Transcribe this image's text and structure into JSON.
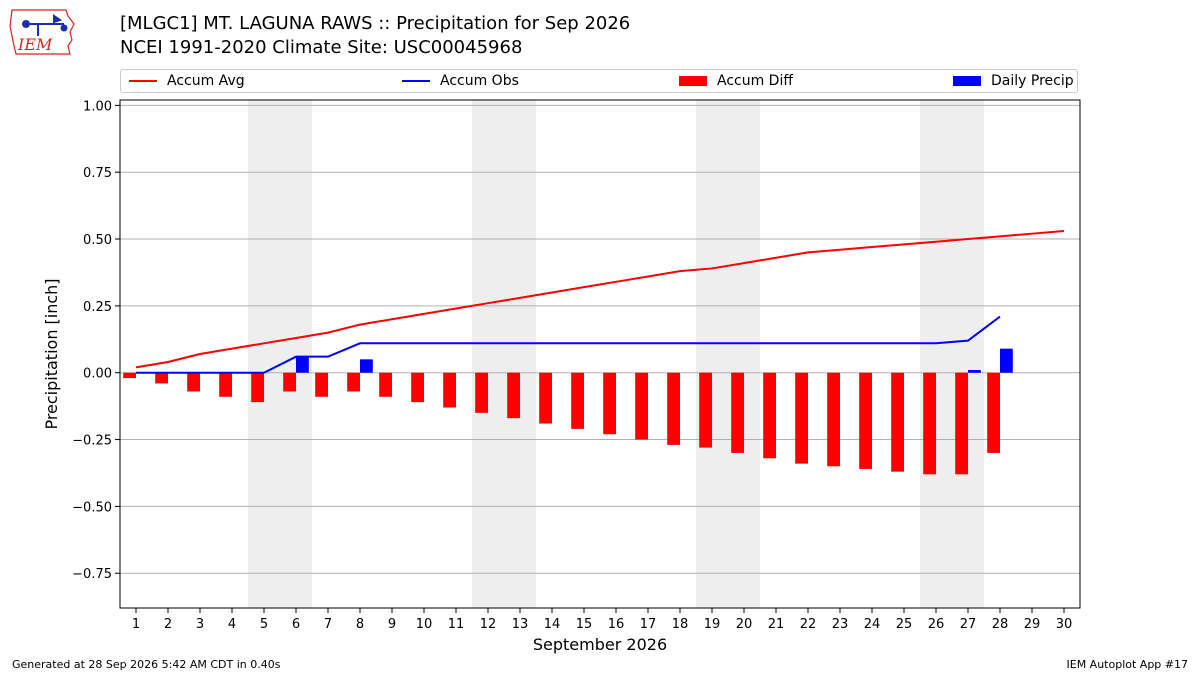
{
  "header": {
    "title_line1": "[MLGC1] MT. LAGUNA RAWS :: Precipitation for Sep 2026",
    "title_line2": "NCEI 1991-2020 Climate Site: USC00045968",
    "logo_text": "IEM",
    "logo_icon": "iem-iowa-logo-icon"
  },
  "legend": {
    "accum_avg": "Accum Avg",
    "accum_obs": "Accum Obs",
    "accum_diff": "Accum Diff",
    "daily_precip": "Daily Precip"
  },
  "footer": {
    "generated": "Generated at 28 Sep 2026 5:42 AM CDT in 0.40s",
    "app": "IEM Autoplot App #17"
  },
  "chart_data": {
    "type": "bar",
    "xlabel": "September 2026",
    "ylabel": "Precipitation [inch]",
    "ylim": [
      -0.88,
      1.02
    ],
    "yticks": [
      -0.75,
      -0.5,
      -0.25,
      0.0,
      0.25,
      0.5,
      0.75,
      1.0
    ],
    "ytick_labels": [
      "−0.75",
      "−0.50",
      "−0.25",
      "0.00",
      "0.25",
      "0.50",
      "0.75",
      "1.00"
    ],
    "xlim": [
      0.5,
      30.5
    ],
    "days": [
      1,
      2,
      3,
      4,
      5,
      6,
      7,
      8,
      9,
      10,
      11,
      12,
      13,
      14,
      15,
      16,
      17,
      18,
      19,
      20,
      21,
      22,
      23,
      24,
      25,
      26,
      27,
      28,
      29,
      30
    ],
    "grid": "horizontal",
    "weekend_shading": [
      [
        4.5,
        6.5
      ],
      [
        11.5,
        13.5
      ],
      [
        18.5,
        20.5
      ],
      [
        25.5,
        27.5
      ]
    ],
    "colors": {
      "accum_avg": "#ff0000",
      "accum_obs": "#0000ff",
      "accum_diff": "#ff0000",
      "daily_precip": "#0000ff",
      "shade": "#eeeeee"
    },
    "series": [
      {
        "name": "Accum Avg",
        "kind": "line",
        "x": [
          1,
          2,
          3,
          4,
          5,
          6,
          7,
          8,
          9,
          10,
          11,
          12,
          13,
          14,
          15,
          16,
          17,
          18,
          19,
          20,
          21,
          22,
          23,
          24,
          25,
          26,
          27,
          28,
          29,
          30
        ],
        "values": [
          0.02,
          0.04,
          0.07,
          0.09,
          0.11,
          0.13,
          0.15,
          0.18,
          0.2,
          0.22,
          0.24,
          0.26,
          0.28,
          0.3,
          0.32,
          0.34,
          0.36,
          0.38,
          0.39,
          0.41,
          0.43,
          0.45,
          0.46,
          0.47,
          0.48,
          0.49,
          0.5,
          0.51,
          0.52,
          0.53
        ]
      },
      {
        "name": "Accum Obs",
        "kind": "line",
        "x": [
          1,
          2,
          3,
          4,
          5,
          6,
          7,
          8,
          9,
          10,
          11,
          12,
          13,
          14,
          15,
          16,
          17,
          18,
          19,
          20,
          21,
          22,
          23,
          24,
          25,
          26,
          27,
          28
        ],
        "values": [
          0.0,
          0.0,
          0.0,
          0.0,
          0.0,
          0.06,
          0.06,
          0.11,
          0.11,
          0.11,
          0.11,
          0.11,
          0.11,
          0.11,
          0.11,
          0.11,
          0.11,
          0.11,
          0.11,
          0.11,
          0.11,
          0.11,
          0.11,
          0.11,
          0.11,
          0.11,
          0.12,
          0.21
        ]
      },
      {
        "name": "Accum Diff",
        "kind": "bar",
        "offset": -0.2,
        "x": [
          1,
          2,
          3,
          4,
          5,
          6,
          7,
          8,
          9,
          10,
          11,
          12,
          13,
          14,
          15,
          16,
          17,
          18,
          19,
          20,
          21,
          22,
          23,
          24,
          25,
          26,
          27,
          28
        ],
        "values": [
          -0.02,
          -0.04,
          -0.07,
          -0.09,
          -0.11,
          -0.07,
          -0.09,
          -0.07,
          -0.09,
          -0.11,
          -0.13,
          -0.15,
          -0.17,
          -0.19,
          -0.21,
          -0.23,
          -0.25,
          -0.27,
          -0.28,
          -0.3,
          -0.32,
          -0.34,
          -0.35,
          -0.36,
          -0.37,
          -0.38,
          -0.38,
          -0.3
        ]
      },
      {
        "name": "Daily Precip",
        "kind": "bar",
        "offset": 0.2,
        "x": [
          6,
          8,
          27,
          28
        ],
        "values": [
          0.06,
          0.05,
          0.01,
          0.09
        ]
      }
    ]
  }
}
